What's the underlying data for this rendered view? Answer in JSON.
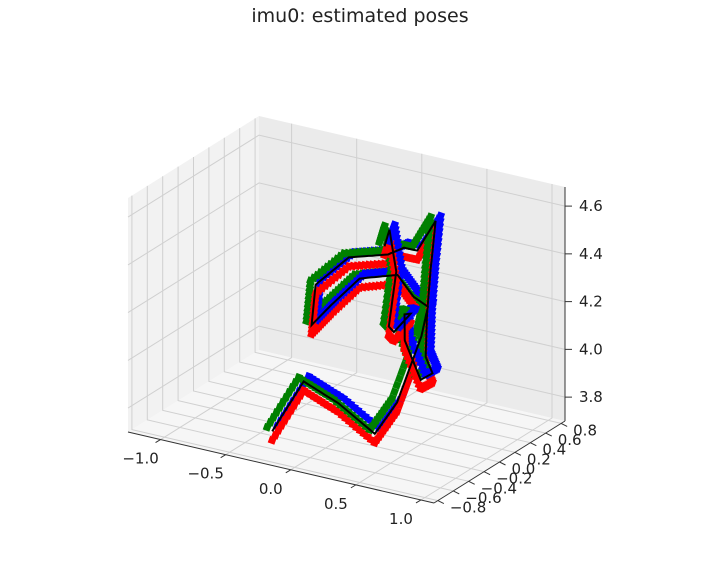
{
  "chart_data": {
    "type": "3d-line",
    "title": "imu0: estimated poses",
    "xlabel": "",
    "ylabel": "",
    "zlabel": "",
    "grid": true,
    "x_ticks": [
      "−1.0",
      "−0.5",
      "0.0",
      "0.5",
      "1.0"
    ],
    "y_ticks": [
      "−0.8",
      "−0.6",
      "−0.4",
      "−0.2",
      "0.0",
      "0.2",
      "0.4",
      "0.6",
      "0.8"
    ],
    "z_ticks": [
      "3.8",
      "4.0",
      "4.2",
      "4.4",
      "4.6"
    ],
    "xlim": [
      -1.25,
      1.1
    ],
    "ylim": [
      -0.85,
      0.85
    ],
    "zlim": [
      3.7,
      4.68
    ],
    "colors": {
      "trajectory": "#000000",
      "axis_x": "#ff0000",
      "axis_y": "#008000",
      "axis_z": "#0000ff",
      "pane_back": "#ebebeb",
      "pane_side": "#f2f2f2",
      "pane_floor": "#f6f6f6",
      "grid": "#d0d0d0"
    },
    "trajectory": [
      {
        "x": -0.32,
        "y": -0.55,
        "z": 3.76
      },
      {
        "x": -0.12,
        "y": -0.48,
        "z": 3.98
      },
      {
        "x": 0.1,
        "y": -0.4,
        "z": 3.9
      },
      {
        "x": 0.32,
        "y": -0.3,
        "z": 3.78
      },
      {
        "x": 0.42,
        "y": -0.18,
        "z": 3.9
      },
      {
        "x": 0.5,
        "y": 0.0,
        "z": 4.15
      },
      {
        "x": 0.42,
        "y": 0.22,
        "z": 4.22
      },
      {
        "x": 0.25,
        "y": 0.32,
        "z": 4.22
      },
      {
        "x": 0.05,
        "y": 0.45,
        "z": 4.26
      },
      {
        "x": -0.3,
        "y": 0.55,
        "z": 4.18
      },
      {
        "x": -0.5,
        "y": 0.52,
        "z": 4.05
      },
      {
        "x": -0.58,
        "y": 0.4,
        "z": 3.98
      },
      {
        "x": -0.62,
        "y": 0.52,
        "z": 4.12
      },
      {
        "x": -0.4,
        "y": 0.58,
        "z": 4.25
      },
      {
        "x": -0.1,
        "y": 0.58,
        "z": 4.3
      },
      {
        "x": 0.1,
        "y": 0.45,
        "z": 4.38
      },
      {
        "x": 0.35,
        "y": 0.2,
        "z": 4.45
      },
      {
        "x": 0.55,
        "y": 0.1,
        "z": 4.62
      },
      {
        "x": 0.6,
        "y": -0.05,
        "z": 4.45
      },
      {
        "x": 0.75,
        "y": -0.35,
        "z": 4.34
      },
      {
        "x": 0.9,
        "y": -0.62,
        "z": 4.24
      },
      {
        "x": 1.0,
        "y": -0.7,
        "z": 4.2
      },
      {
        "x": 0.82,
        "y": -0.55,
        "z": 4.12
      },
      {
        "x": 0.55,
        "y": -0.3,
        "z": 4.2
      },
      {
        "x": 0.4,
        "y": -0.05,
        "z": 4.24
      },
      {
        "x": 0.3,
        "y": 0.2,
        "z": 4.18
      },
      {
        "x": 0.2,
        "y": 0.15,
        "z": 4.1
      },
      {
        "x": 0.25,
        "y": 0.0,
        "z": 4.16
      },
      {
        "x": 0.1,
        "y": 0.35,
        "z": 4.3
      },
      {
        "x": -0.1,
        "y": 0.6,
        "z": 4.4
      },
      {
        "x": -0.15,
        "y": 0.62,
        "z": 4.32
      }
    ]
  }
}
